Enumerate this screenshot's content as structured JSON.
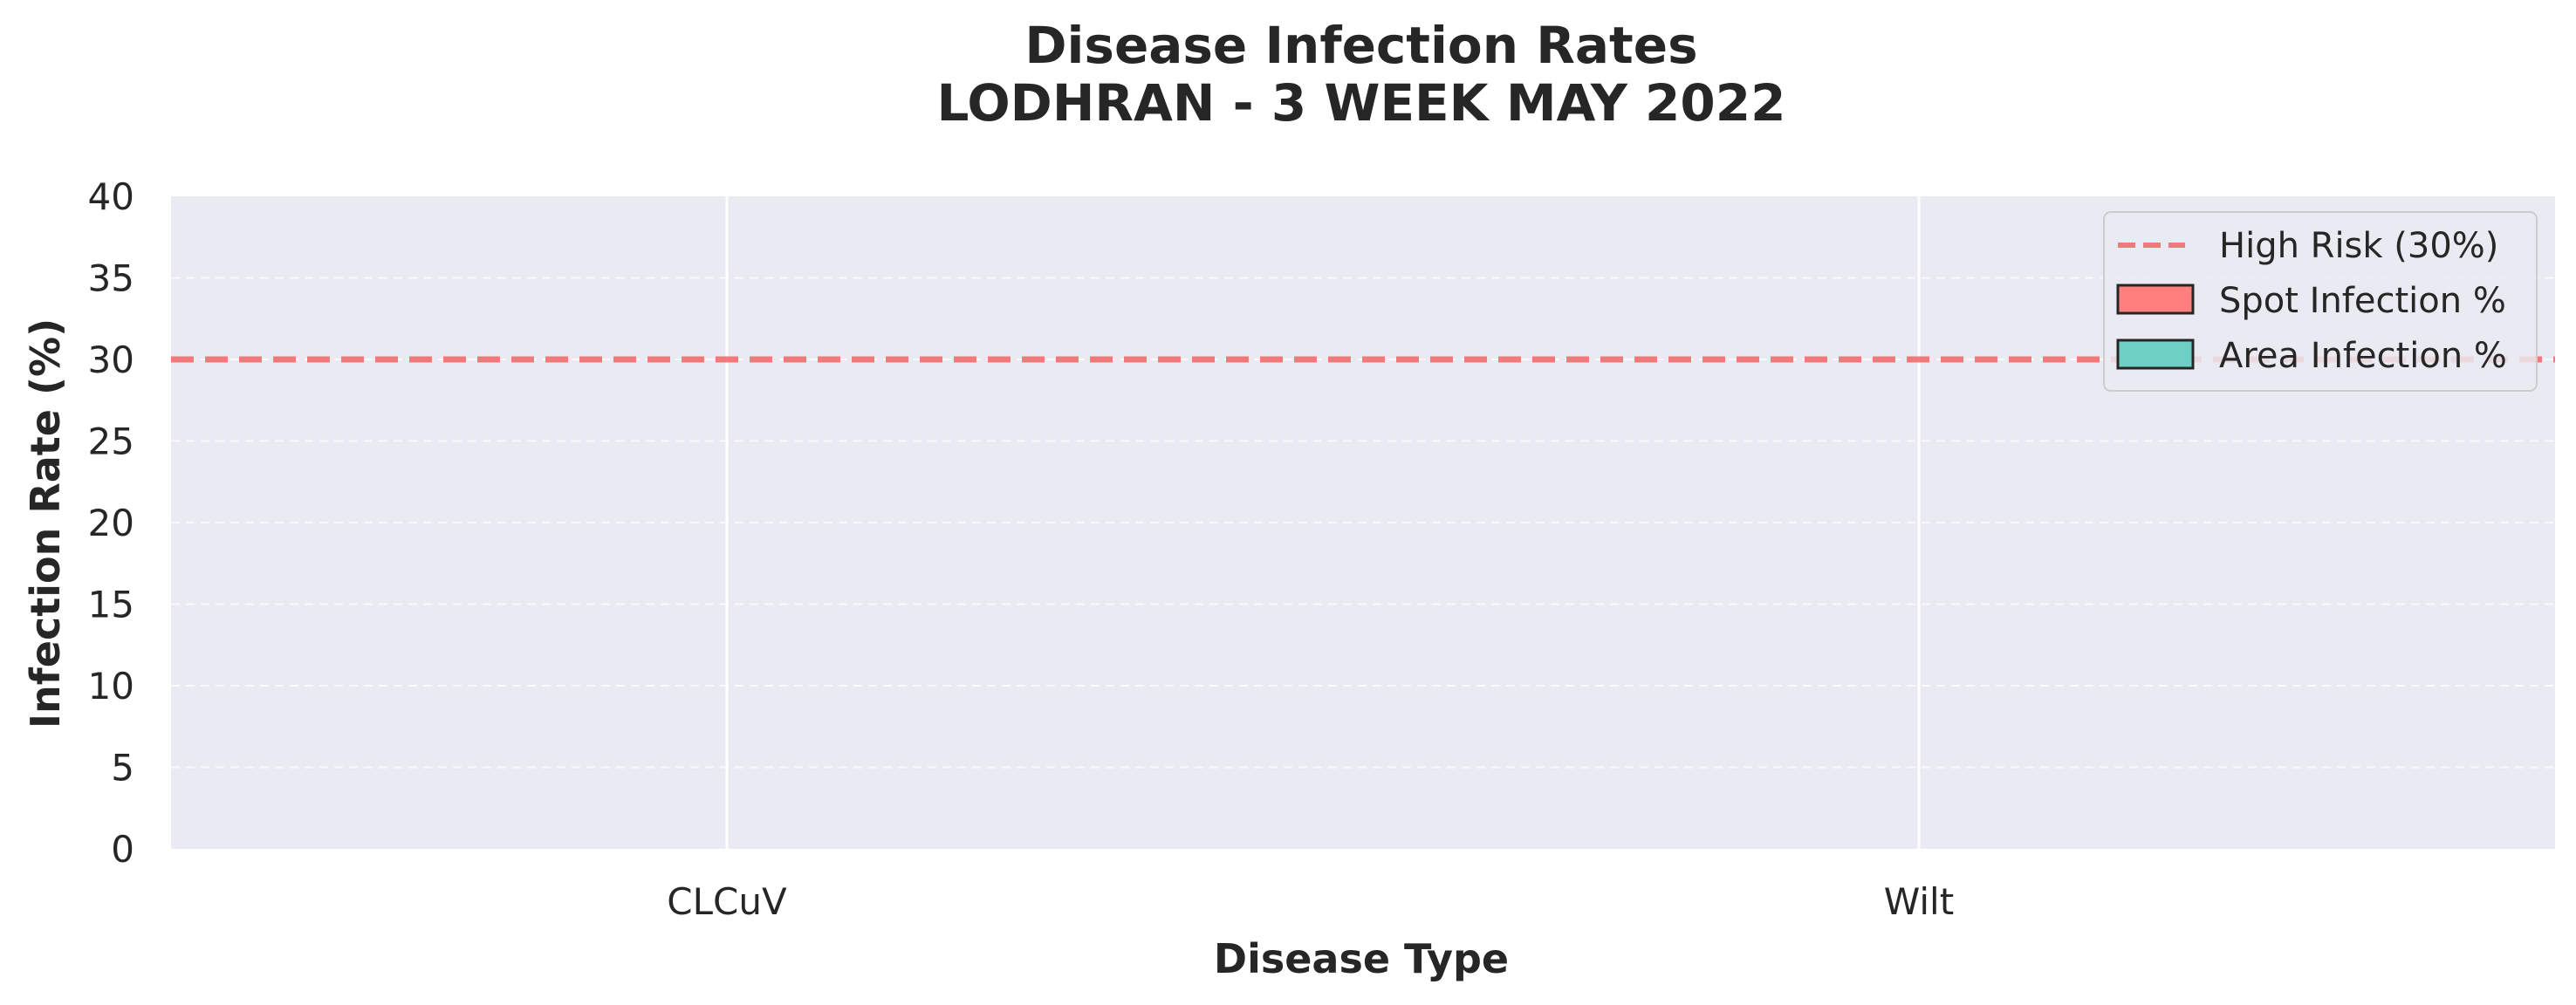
{
  "chart_data": {
    "type": "bar",
    "title": "Disease Infection Rates",
    "subtitle": "LODHRAN - 3 WEEK MAY 2022",
    "xlabel": "Disease Type",
    "ylabel": "Infection Rate (%)",
    "categories": [
      "CLCuV",
      "Wilt"
    ],
    "series": [
      {
        "name": "Spot Infection %",
        "values": [
          0,
          0
        ],
        "color": "#ff7f7f"
      },
      {
        "name": "Area Infection %",
        "values": [
          0,
          0
        ],
        "color": "#6ecfc5"
      }
    ],
    "ylim": [
      0,
      40
    ],
    "yticks": [
      0,
      5,
      10,
      15,
      20,
      25,
      30,
      35,
      40
    ],
    "reference_line": {
      "label": "High Risk (30%)",
      "value": 30,
      "style": "dashed",
      "color": "#f07a7a"
    },
    "grid": true,
    "legend_position": "top-right",
    "background_color": "#eaeaf2"
  }
}
